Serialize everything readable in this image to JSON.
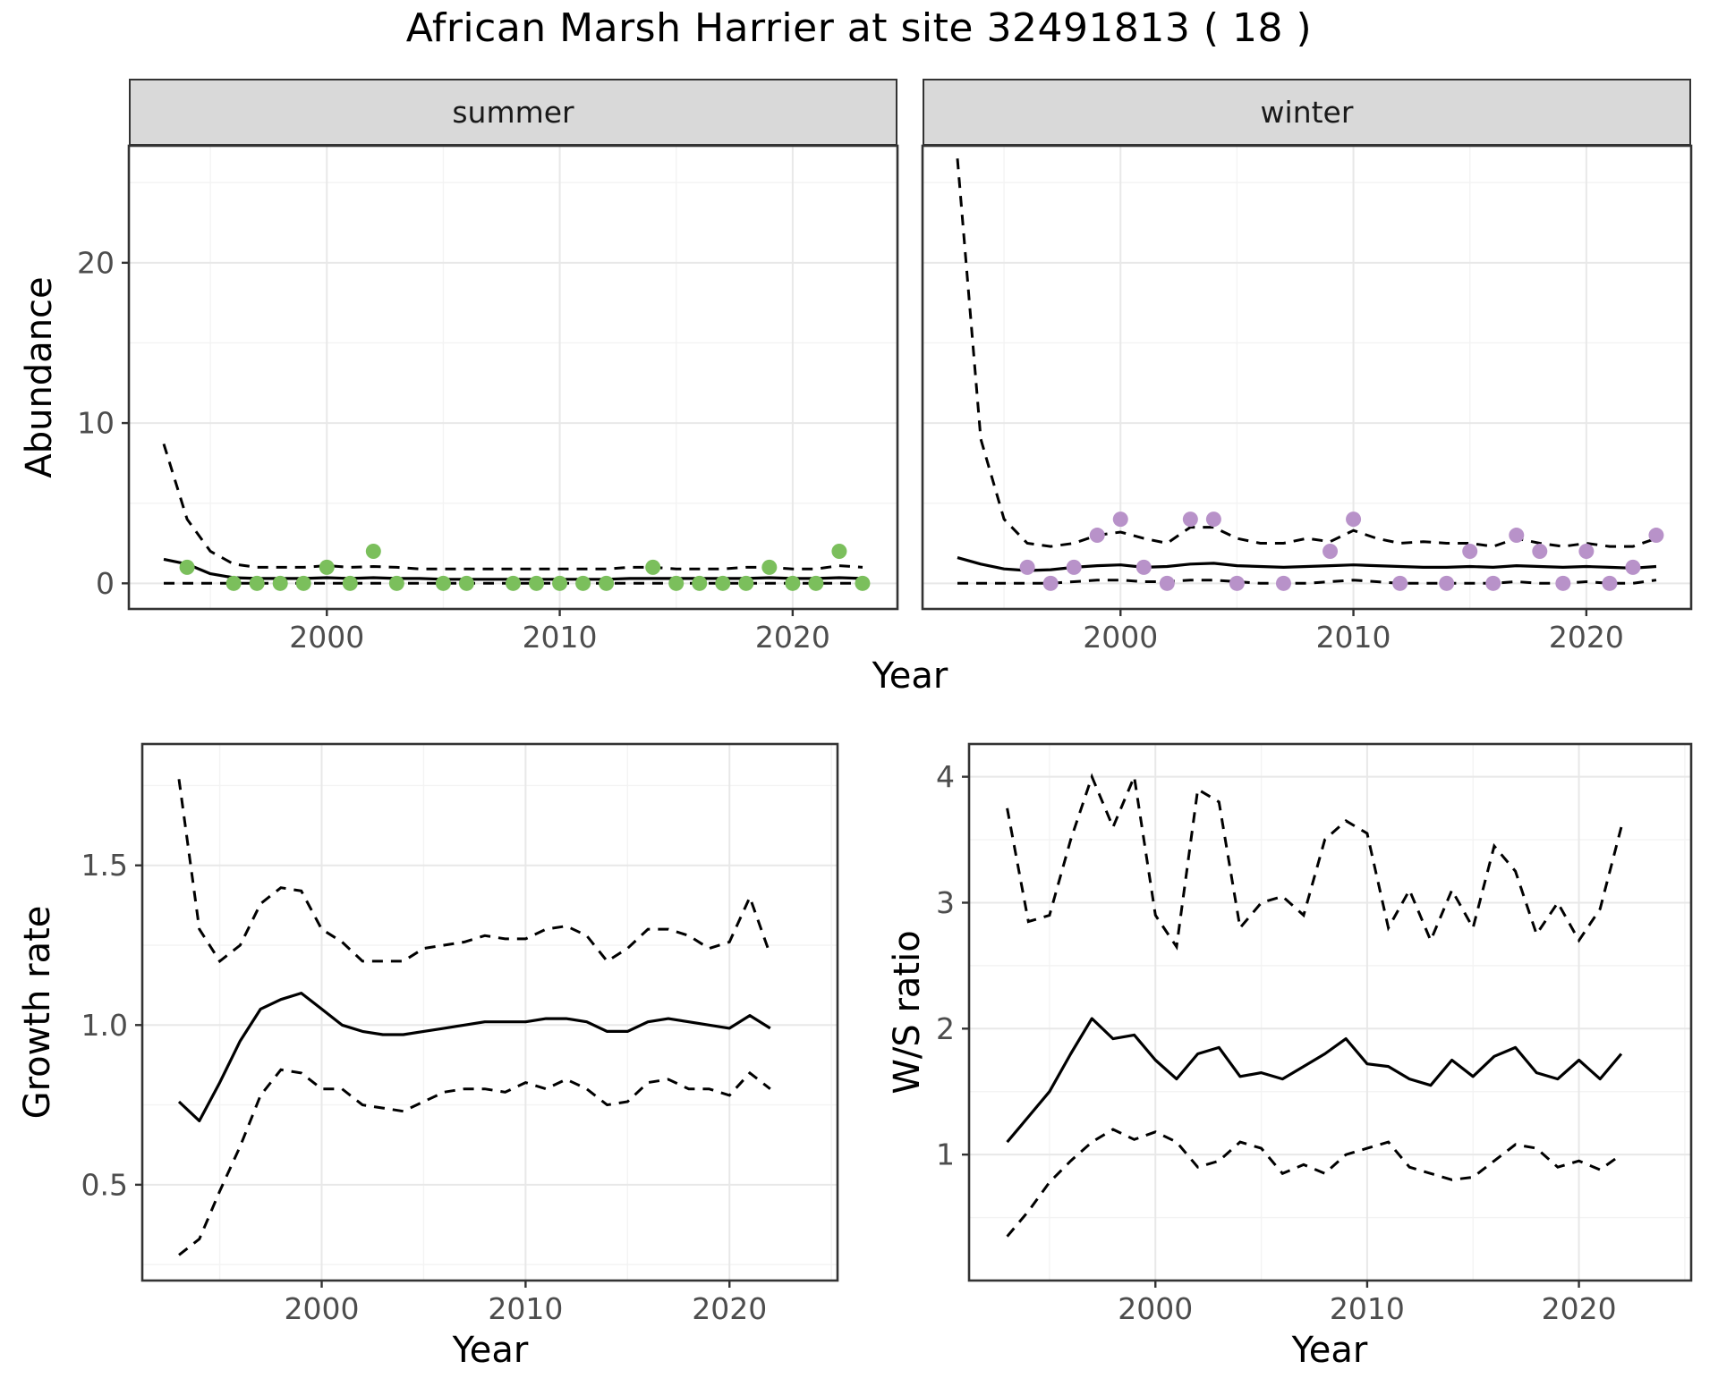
{
  "title": "African Marsh Harrier at site 32491813 ( 18 )",
  "facets": {
    "summer": "summer",
    "winter": "winter"
  },
  "axis_labels": {
    "abundance": "Abundance",
    "growth": "Growth rate",
    "ws": "W/S ratio",
    "year": "Year"
  },
  "colors": {
    "summer_point": "#7bbf5c",
    "winter_point": "#b892c9",
    "line": "#000000",
    "grid_major": "#e8e8e8",
    "grid_minor": "#f3f3f3",
    "panel_border": "#333333",
    "strip_bg": "#d9d9d9",
    "tick_text": "#4d4d4d"
  },
  "chart_data": [
    {
      "id": "abundance_summer",
      "type": "scatter",
      "facet": "summer",
      "title": "summer abundance with model fit and 95% CI",
      "xlabel": "Year",
      "ylabel": "Abundance",
      "xlim": [
        1991.5,
        2024.5
      ],
      "ylim": [
        -1.6,
        27.3
      ],
      "xticks": [
        2000,
        2010,
        2020
      ],
      "xtick_labels": [
        "2000",
        "2010",
        "2020"
      ],
      "yticks": [
        0,
        10,
        20
      ],
      "ytick_labels": [
        "0",
        "10",
        "20"
      ],
      "xminor": [
        1995,
        2005,
        2015
      ],
      "yminor": [
        5,
        15,
        25
      ],
      "years": [
        1993,
        1994,
        1995,
        1996,
        1997,
        1998,
        1999,
        2000,
        2001,
        2002,
        2003,
        2004,
        2005,
        2006,
        2007,
        2008,
        2009,
        2010,
        2011,
        2012,
        2013,
        2014,
        2015,
        2016,
        2017,
        2018,
        2019,
        2020,
        2021,
        2022,
        2023
      ],
      "fit": [
        1.5,
        1.2,
        0.6,
        0.35,
        0.3,
        0.3,
        0.3,
        0.35,
        0.3,
        0.35,
        0.3,
        0.3,
        0.25,
        0.25,
        0.25,
        0.25,
        0.25,
        0.25,
        0.25,
        0.25,
        0.3,
        0.3,
        0.3,
        0.3,
        0.3,
        0.3,
        0.35,
        0.3,
        0.3,
        0.35,
        0.3
      ],
      "upper": [
        8.7,
        4.0,
        2.0,
        1.2,
        1.0,
        1.0,
        1.0,
        1.1,
        1.0,
        1.05,
        1.0,
        0.9,
        0.9,
        0.9,
        0.9,
        0.9,
        0.9,
        0.9,
        0.9,
        0.9,
        1.0,
        1.0,
        0.9,
        0.9,
        0.9,
        1.0,
        1.0,
        0.9,
        0.9,
        1.1,
        1.0
      ],
      "lower": [
        0,
        0,
        0,
        0,
        0,
        0,
        0,
        0,
        0,
        0,
        0,
        0,
        0,
        0,
        0,
        0,
        0,
        0,
        0,
        0,
        0,
        0,
        0,
        0,
        0,
        0,
        0,
        0,
        0,
        0,
        0
      ],
      "points": {
        "years": [
          1994,
          1996,
          1997,
          1998,
          1999,
          2000,
          2001,
          2002,
          2003,
          2005,
          2006,
          2008,
          2009,
          2010,
          2011,
          2012,
          2014,
          2015,
          2016,
          2017,
          2018,
          2019,
          2020,
          2021,
          2022,
          2023
        ],
        "values": [
          1,
          0,
          0,
          0,
          0,
          1,
          0,
          2,
          0,
          0,
          0,
          0,
          0,
          0,
          0,
          0,
          1,
          0,
          0,
          0,
          0,
          1,
          0,
          0,
          2,
          0
        ]
      },
      "point_color": "#7bbf5c"
    },
    {
      "id": "abundance_winter",
      "type": "scatter",
      "facet": "winter",
      "title": "winter abundance with model fit and 95% CI",
      "xlabel": "Year",
      "ylabel": "Abundance",
      "xlim": [
        1991.5,
        2024.5
      ],
      "ylim": [
        -1.6,
        27.3
      ],
      "xticks": [
        2000,
        2010,
        2020
      ],
      "xtick_labels": [
        "2000",
        "2010",
        "2020"
      ],
      "yticks": [
        0,
        10,
        20
      ],
      "ytick_labels": [
        "0",
        "10",
        "20"
      ],
      "xminor": [
        1995,
        2005,
        2015
      ],
      "yminor": [
        5,
        15,
        25
      ],
      "years": [
        1993,
        1994,
        1995,
        1996,
        1997,
        1998,
        1999,
        2000,
        2001,
        2002,
        2003,
        2004,
        2005,
        2006,
        2007,
        2008,
        2009,
        2010,
        2011,
        2012,
        2013,
        2014,
        2015,
        2016,
        2017,
        2018,
        2019,
        2020,
        2021,
        2022,
        2023
      ],
      "fit": [
        1.6,
        1.2,
        0.9,
        0.8,
        0.85,
        1.0,
        1.1,
        1.15,
        1.0,
        1.05,
        1.2,
        1.25,
        1.1,
        1.05,
        1.0,
        1.05,
        1.1,
        1.15,
        1.1,
        1.05,
        1.0,
        1.0,
        1.05,
        1.0,
        1.1,
        1.05,
        1.0,
        1.05,
        1.0,
        0.95,
        1.05
      ],
      "upper": [
        26.5,
        9.0,
        4.0,
        2.5,
        2.3,
        2.5,
        3.0,
        3.2,
        2.8,
        2.5,
        3.5,
        3.5,
        2.8,
        2.5,
        2.5,
        2.8,
        2.6,
        3.3,
        2.8,
        2.5,
        2.6,
        2.5,
        2.5,
        2.3,
        2.8,
        2.5,
        2.3,
        2.5,
        2.3,
        2.3,
        2.8
      ],
      "lower": [
        0,
        0,
        0,
        0,
        0,
        0.1,
        0.2,
        0.2,
        0.1,
        0.1,
        0.2,
        0.2,
        0.1,
        0,
        0,
        0,
        0.1,
        0.2,
        0.1,
        0,
        0,
        0,
        0,
        0,
        0.1,
        0,
        0,
        0.1,
        0,
        0,
        0.2
      ],
      "points": {
        "years": [
          1996,
          1997,
          1998,
          1999,
          2000,
          2001,
          2002,
          2003,
          2004,
          2005,
          2007,
          2009,
          2010,
          2012,
          2014,
          2015,
          2016,
          2017,
          2018,
          2019,
          2020,
          2021,
          2022,
          2023
        ],
        "values": [
          1,
          0,
          1,
          3,
          4,
          1,
          0,
          4,
          4,
          0,
          0,
          2,
          4,
          0,
          0,
          2,
          0,
          3,
          2,
          0,
          2,
          0,
          1,
          3
        ]
      },
      "point_color": "#b892c9"
    },
    {
      "id": "growth",
      "type": "line",
      "facet": null,
      "title": "growth rate with 95% CI",
      "xlabel": "Year",
      "ylabel": "Growth rate",
      "xlim": [
        1991.2,
        2025.3
      ],
      "ylim": [
        0.2,
        1.88
      ],
      "xticks": [
        2000,
        2010,
        2020
      ],
      "xtick_labels": [
        "2000",
        "2010",
        "2020"
      ],
      "yticks": [
        0.5,
        1.0,
        1.5
      ],
      "ytick_labels": [
        "0.5",
        "1.0",
        "1.5"
      ],
      "xminor": [
        1995,
        2005,
        2015,
        2025
      ],
      "yminor": [
        0.25,
        0.75,
        1.25,
        1.75
      ],
      "years": [
        1993,
        1994,
        1995,
        1996,
        1997,
        1998,
        1999,
        2000,
        2001,
        2002,
        2003,
        2004,
        2005,
        2006,
        2007,
        2008,
        2009,
        2010,
        2011,
        2012,
        2013,
        2014,
        2015,
        2016,
        2017,
        2018,
        2019,
        2020,
        2021,
        2022
      ],
      "fit": [
        0.76,
        0.7,
        0.82,
        0.95,
        1.05,
        1.08,
        1.1,
        1.05,
        1.0,
        0.98,
        0.97,
        0.97,
        0.98,
        0.99,
        1.0,
        1.01,
        1.01,
        1.01,
        1.02,
        1.02,
        1.01,
        0.98,
        0.98,
        1.01,
        1.02,
        1.01,
        1.0,
        0.99,
        1.03,
        0.99
      ],
      "upper": [
        1.77,
        1.3,
        1.2,
        1.25,
        1.38,
        1.43,
        1.42,
        1.3,
        1.26,
        1.2,
        1.2,
        1.2,
        1.24,
        1.25,
        1.26,
        1.28,
        1.27,
        1.27,
        1.3,
        1.31,
        1.28,
        1.2,
        1.24,
        1.3,
        1.3,
        1.28,
        1.24,
        1.26,
        1.4,
        1.22
      ],
      "lower": [
        0.28,
        0.33,
        0.48,
        0.62,
        0.78,
        0.86,
        0.85,
        0.8,
        0.8,
        0.75,
        0.74,
        0.73,
        0.76,
        0.79,
        0.8,
        0.8,
        0.79,
        0.82,
        0.8,
        0.83,
        0.8,
        0.75,
        0.76,
        0.82,
        0.83,
        0.8,
        0.8,
        0.78,
        0.85,
        0.8
      ],
      "points": null,
      "point_color": null
    },
    {
      "id": "ws",
      "type": "line",
      "facet": null,
      "title": "winter/summer ratio with 95% CI",
      "xlabel": "Year",
      "ylabel": "W/S ratio",
      "xlim": [
        1991.2,
        2025.3
      ],
      "ylim": [
        0.0,
        4.26
      ],
      "xticks": [
        2000,
        2010,
        2020
      ],
      "xtick_labels": [
        "2000",
        "2010",
        "2020"
      ],
      "yticks": [
        1,
        2,
        3,
        4
      ],
      "ytick_labels": [
        "1",
        "2",
        "3",
        "4"
      ],
      "xminor": [
        1995,
        2005,
        2015,
        2025
      ],
      "yminor": [
        0.5,
        1.5,
        2.5,
        3.5
      ],
      "years": [
        1993,
        1994,
        1995,
        1996,
        1997,
        1998,
        1999,
        2000,
        2001,
        2002,
        2003,
        2004,
        2005,
        2006,
        2007,
        2008,
        2009,
        2010,
        2011,
        2012,
        2013,
        2014,
        2015,
        2016,
        2017,
        2018,
        2019,
        2020,
        2021,
        2022
      ],
      "fit": [
        1.1,
        1.3,
        1.5,
        1.8,
        2.08,
        1.92,
        1.95,
        1.75,
        1.6,
        1.8,
        1.85,
        1.62,
        1.65,
        1.6,
        1.7,
        1.8,
        1.92,
        1.72,
        1.7,
        1.6,
        1.55,
        1.75,
        1.62,
        1.78,
        1.85,
        1.65,
        1.6,
        1.75,
        1.6,
        1.8
      ],
      "upper": [
        3.75,
        2.85,
        2.9,
        3.5,
        4.0,
        3.6,
        4.0,
        2.9,
        2.65,
        3.9,
        3.8,
        2.8,
        3.0,
        3.05,
        2.9,
        3.5,
        3.65,
        3.55,
        2.8,
        3.1,
        2.7,
        3.1,
        2.8,
        3.45,
        3.25,
        2.75,
        3.0,
        2.7,
        2.95,
        3.6
      ],
      "lower": [
        0.35,
        0.55,
        0.78,
        0.95,
        1.1,
        1.2,
        1.12,
        1.18,
        1.1,
        0.9,
        0.95,
        1.1,
        1.05,
        0.85,
        0.92,
        0.85,
        1.0,
        1.05,
        1.1,
        0.9,
        0.85,
        0.8,
        0.82,
        0.95,
        1.08,
        1.05,
        0.9,
        0.95,
        0.88,
        1.0
      ],
      "points": null,
      "point_color": null
    }
  ]
}
